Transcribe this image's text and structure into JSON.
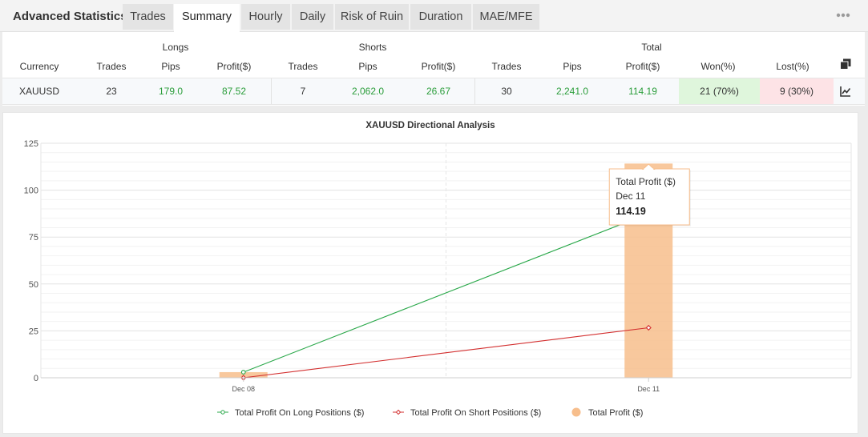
{
  "header": {
    "title": "Advanced Statistics",
    "tabs": [
      "Trades",
      "Summary",
      "Hourly",
      "Daily",
      "Risk of Ruin",
      "Duration",
      "MAE/MFE"
    ],
    "active_tab": "Summary",
    "more_icon": "ellipsis-icon"
  },
  "table": {
    "groups": {
      "longs": "Longs",
      "shorts": "Shorts",
      "total": "Total"
    },
    "columns": [
      "Currency",
      "Trades",
      "Pips",
      "Profit($)",
      "Trades",
      "Pips",
      "Profit($)",
      "Trades",
      "Pips",
      "Profit($)",
      "Won(%)",
      "Lost(%)"
    ],
    "header_icon": "copy-icon",
    "row": {
      "currency": "XAUUSD",
      "long_trades": "23",
      "long_pips": "179.0",
      "long_profit": "87.52",
      "short_trades": "7",
      "short_pips": "2,062.0",
      "short_profit": "26.67",
      "total_trades": "30",
      "total_pips": "2,241.0",
      "total_profit": "114.19",
      "won": "21 (70%)",
      "lost": "9 (30%)",
      "row_icon": "line-chart-icon"
    }
  },
  "colors": {
    "long": "#2aa84a",
    "short": "#d32f2f",
    "total": "#f7be8c",
    "won_bg": "#dff6dc",
    "lost_bg": "#fde3e6"
  },
  "chart_data": {
    "type": "bar",
    "title": "XAUUSD Directional Analysis",
    "categories": [
      "Dec 08",
      "Dec 11"
    ],
    "ylim": [
      0,
      125
    ],
    "yticks": [
      0,
      25,
      50,
      75,
      100,
      125
    ],
    "grid": true,
    "legend_position": "bottom",
    "series": [
      {
        "name": "Total Profit On Long Positions ($)",
        "kind": "line",
        "values": [
          3,
          87.52
        ]
      },
      {
        "name": "Total Profit On Short Positions ($)",
        "kind": "line",
        "values": [
          0,
          26.67
        ]
      },
      {
        "name": "Total Profit ($)",
        "kind": "bar",
        "values": [
          3,
          114.19
        ]
      }
    ],
    "tooltip": {
      "title": "Total Profit ($)",
      "date": "Dec 11",
      "value": "114.19"
    }
  }
}
